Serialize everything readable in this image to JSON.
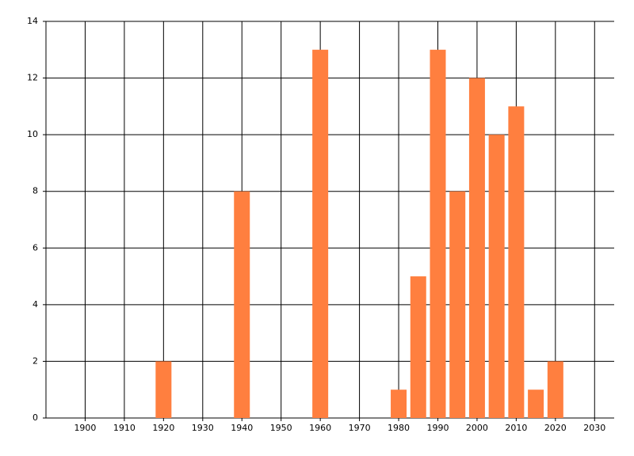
{
  "chart_data": {
    "type": "bar",
    "x": [
      1920,
      1940,
      1960,
      1980,
      1985,
      1990,
      1995,
      2000,
      2005,
      2010,
      2015,
      2020
    ],
    "values": [
      2,
      8,
      13,
      1,
      5,
      13,
      8,
      12,
      10,
      11,
      1,
      2
    ],
    "color": "#ff7f3f",
    "xlim": [
      1890,
      2035
    ],
    "xticks": [
      1900,
      1910,
      1920,
      1930,
      1940,
      1950,
      1960,
      1970,
      1980,
      1990,
      2000,
      2010,
      2020,
      2030
    ],
    "ylim": [
      0,
      14
    ],
    "yticks": [
      0,
      2,
      4,
      6,
      8,
      10,
      12,
      14
    ],
    "grid": true
  }
}
